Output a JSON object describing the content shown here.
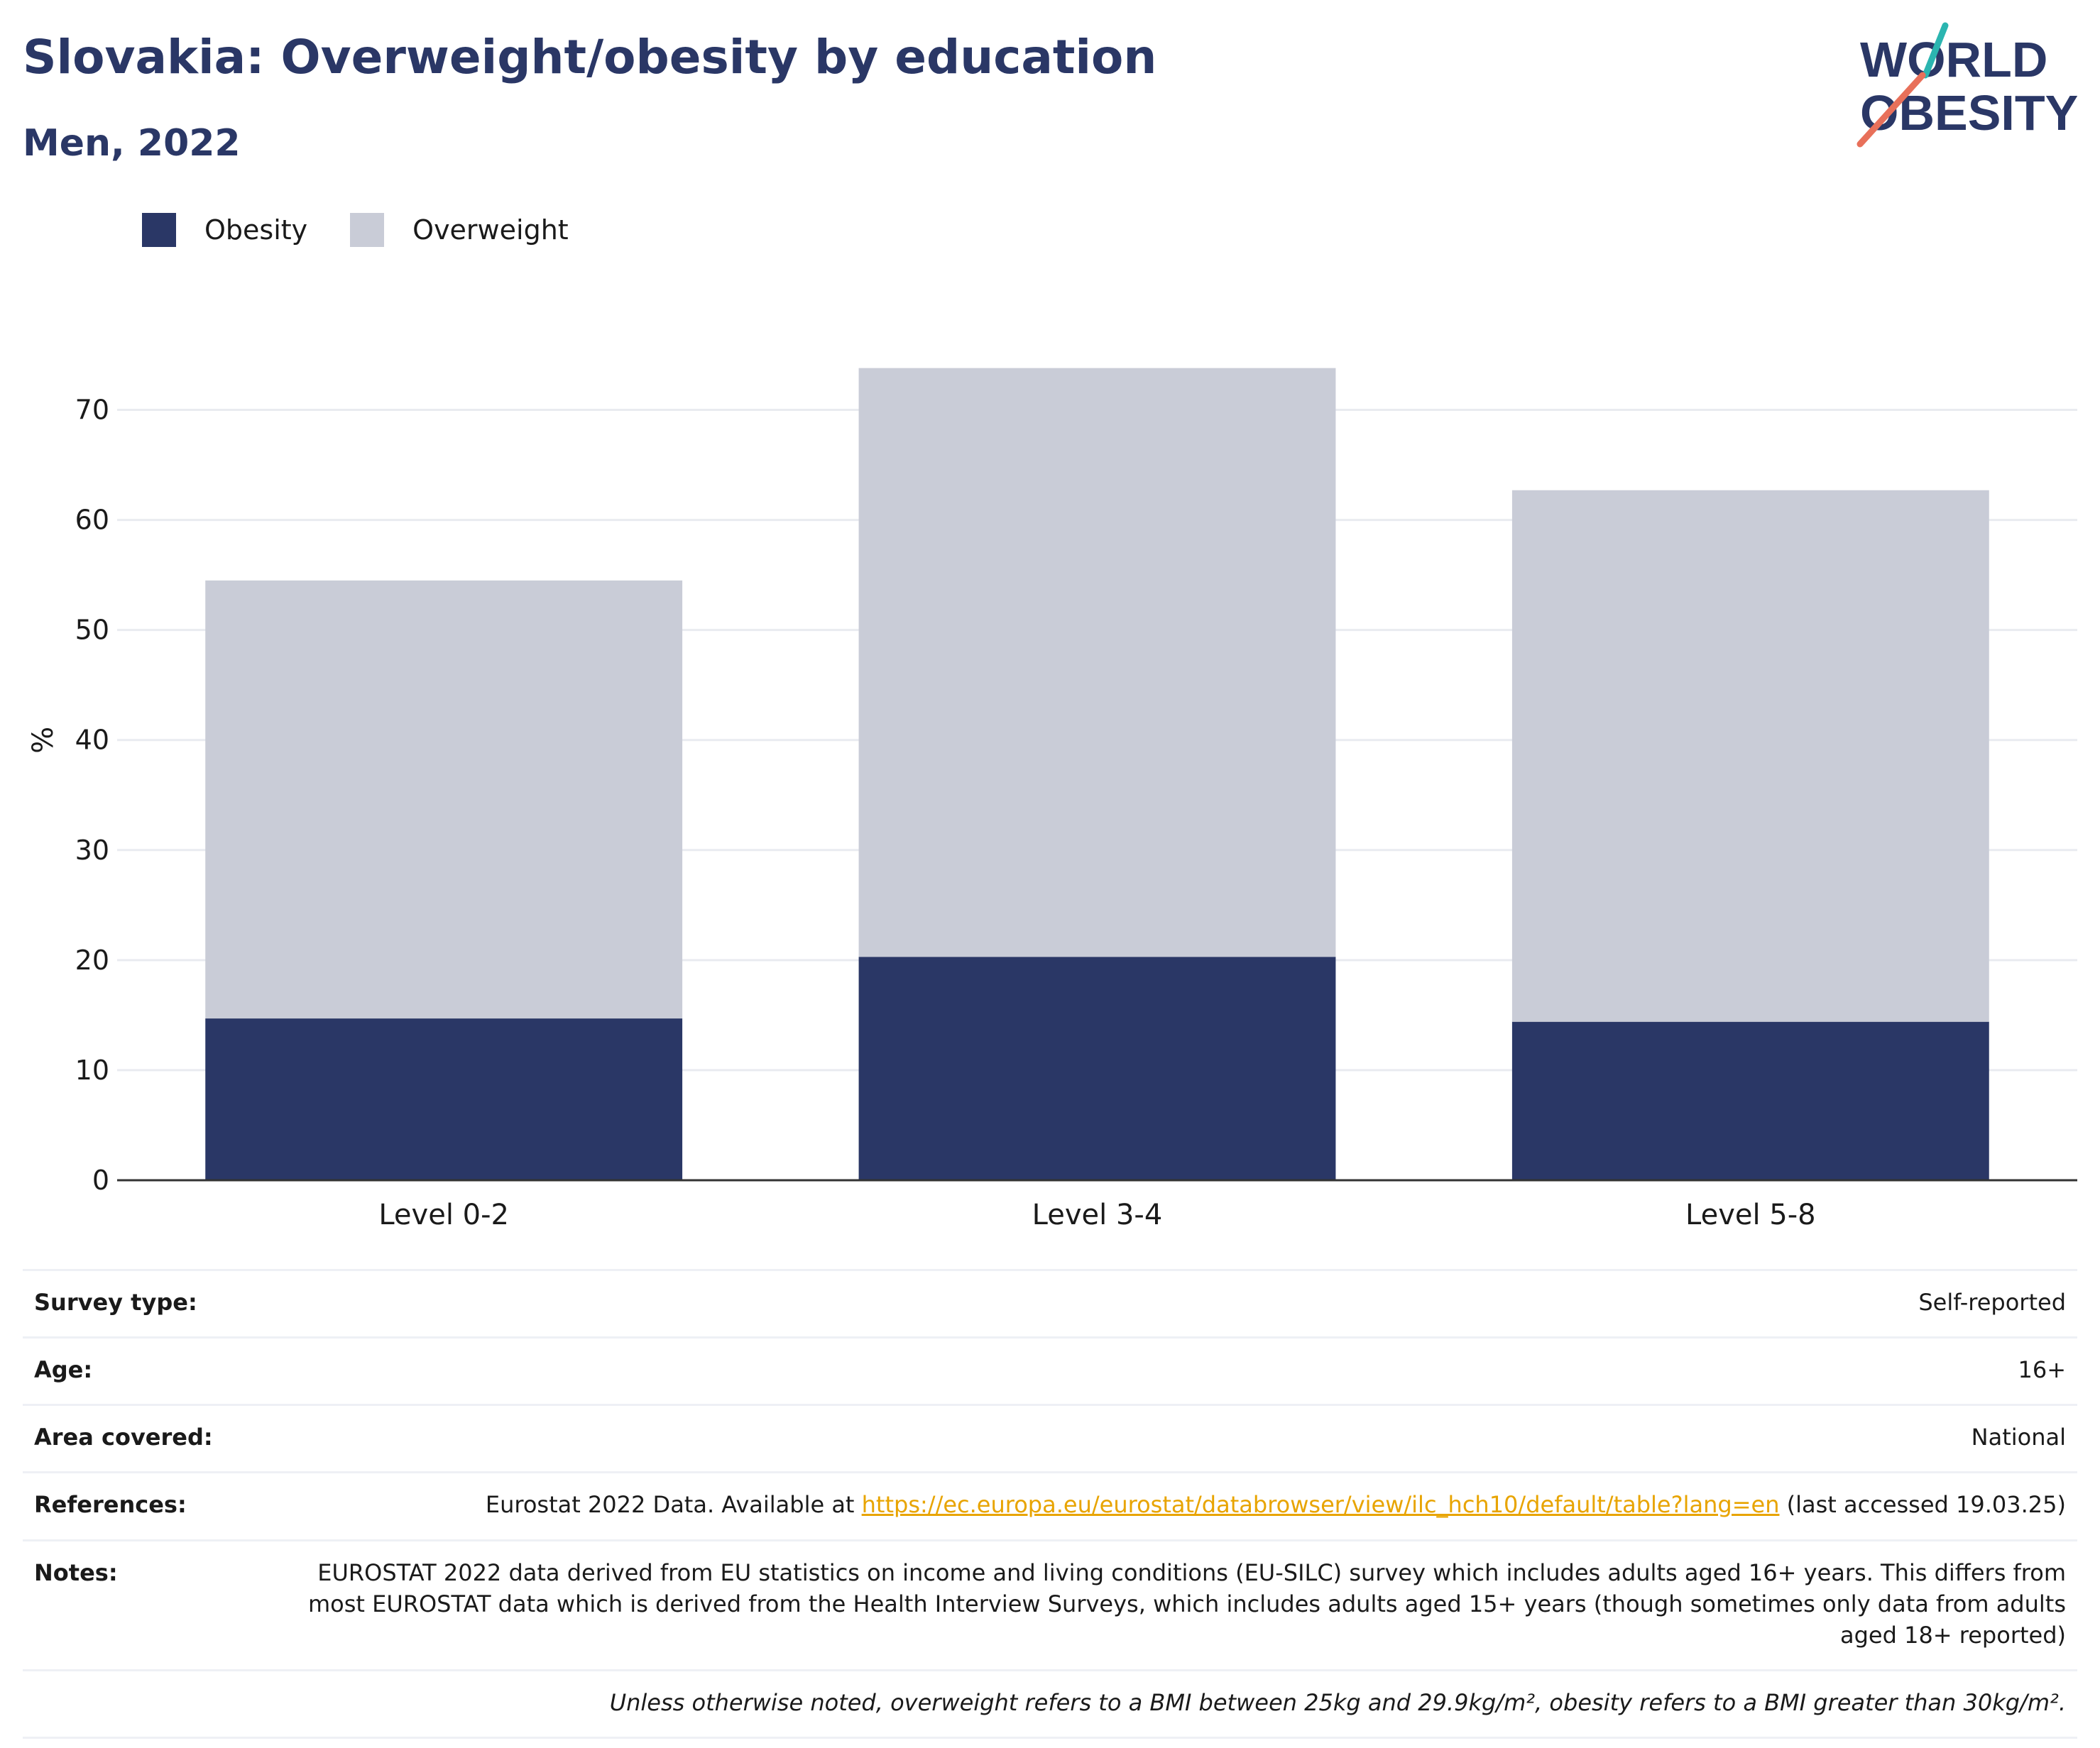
{
  "header": {
    "title": "Slovakia: Overweight/obesity by education",
    "subtitle": "Men, 2022"
  },
  "logo": {
    "line1": "WORLD",
    "line2": "OBESITY"
  },
  "colors": {
    "obesity": "#2a3766",
    "overweight": "#c9ccd7",
    "link": "#e8a400",
    "logo_teal": "#2bb5b0",
    "logo_coral": "#e8705a"
  },
  "legend": {
    "obesity": "Obesity",
    "overweight": "Overweight"
  },
  "chart_data": {
    "type": "bar",
    "stacked": true,
    "categories": [
      "Level 0-2",
      "Level 3-4",
      "Level 5-8"
    ],
    "series": [
      {
        "name": "Obesity",
        "values": [
          14.7,
          20.3,
          14.4
        ]
      },
      {
        "name": "Overweight",
        "values": [
          39.8,
          53.5,
          48.3
        ]
      }
    ],
    "ylabel": "%",
    "yticks": [
      0,
      10,
      20,
      30,
      40,
      50,
      60,
      70
    ],
    "ylim": [
      0,
      75
    ],
    "grid": true,
    "legend_position": "top-left"
  },
  "info": {
    "survey_type_label": "Survey type:",
    "survey_type_value": "Self-reported",
    "age_label": "Age:",
    "age_value": "16+",
    "area_label": "Area covered:",
    "area_value": "National",
    "references_label": "References:",
    "references_prefix": "Eurostat 2022 Data. Available at ",
    "references_link": "https://ec.europa.eu/eurostat/databrowser/view/ilc_hch10/default/table?lang=en",
    "references_suffix": " (last accessed 19.03.25)",
    "notes_label": "Notes:",
    "notes_value": "EUROSTAT 2022 data derived from EU statistics on income and living conditions (EU-SILC) survey which includes adults aged 16+ years. This differs from most EUROSTAT data which is derived from the Health Interview Surveys, which includes adults aged 15+ years (though sometimes only data from adults aged 18+ reported)",
    "definition": "Unless otherwise noted, overweight refers to a BMI between 25kg and 29.9kg/m², obesity refers to a BMI greater than 30kg/m²."
  }
}
